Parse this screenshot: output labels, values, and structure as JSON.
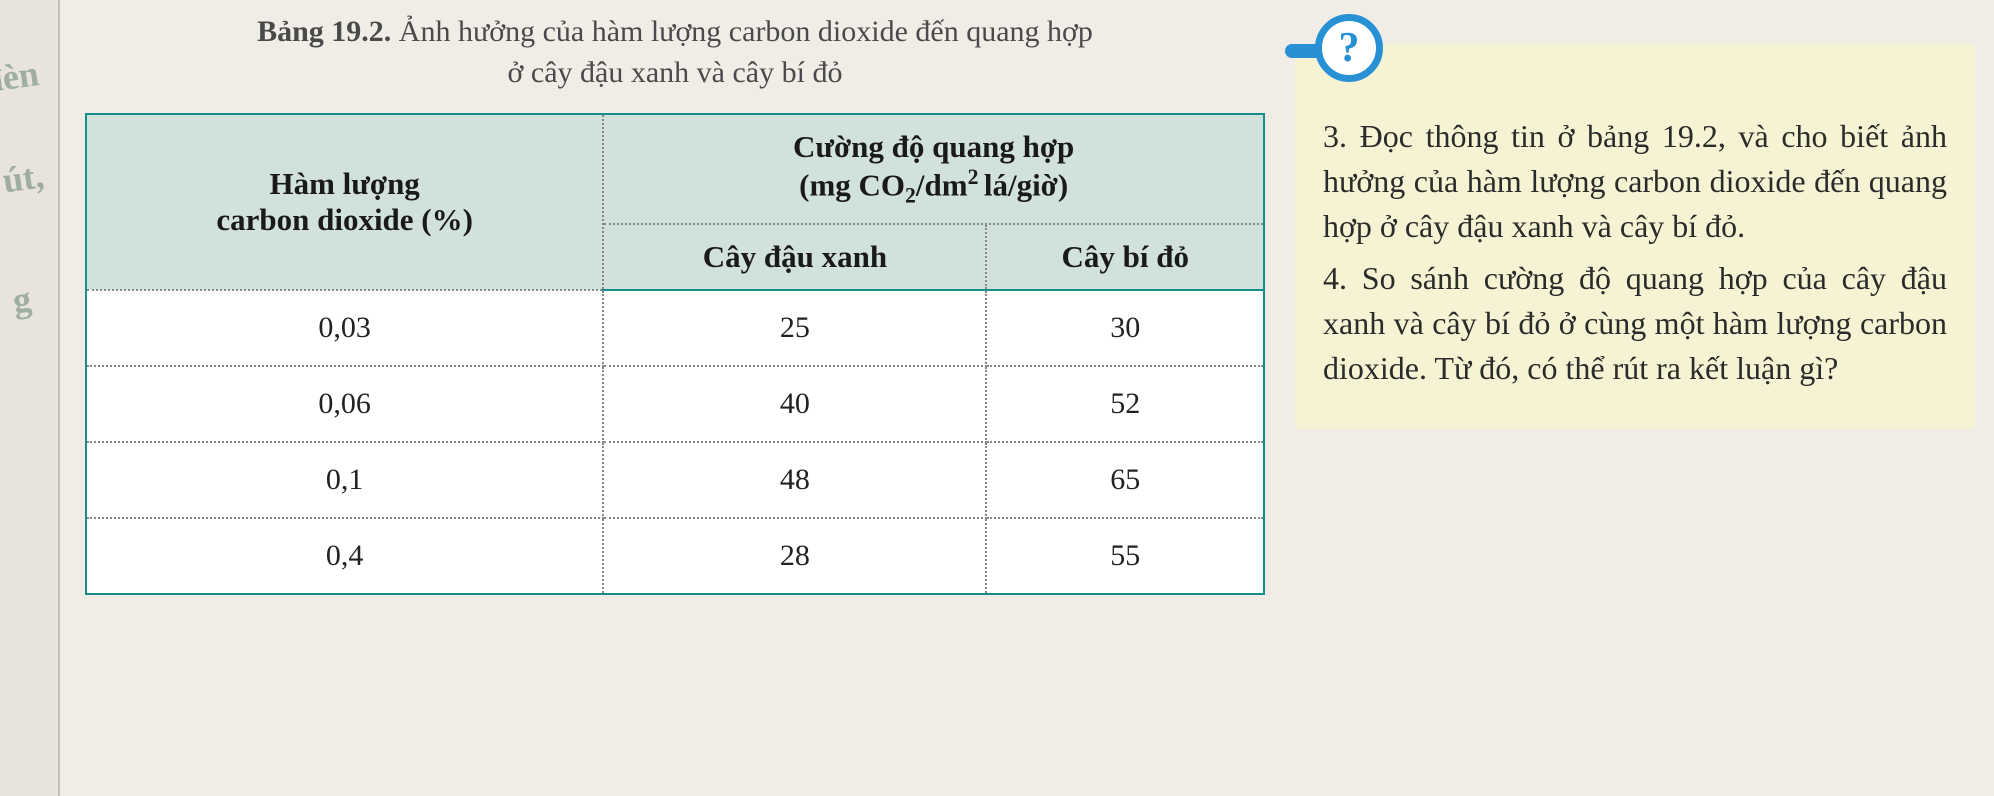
{
  "page_margin": {
    "label1": "đèn",
    "label2": "út,",
    "label3": "g"
  },
  "caption": {
    "bold": "Bảng 19.2.",
    "line1": " Ảnh hưởng của hàm lượng carbon dioxide đến quang hợp",
    "line2": "ở cây đậu xanh và cây bí đỏ"
  },
  "table": {
    "header_left_line1": "Hàm lượng",
    "header_left_line2": "carbon dioxide (%)",
    "header_right_line1": "Cường độ quang hợp",
    "header_right_line2_prefix": "(mg CO",
    "header_right_line2_sub": "2",
    "header_right_line2_mid": "/dm",
    "header_right_line2_sup": "2 ",
    "header_right_line2_suffix": "lá/giờ)",
    "sub_header_1": "Cây đậu xanh",
    "sub_header_2": "Cây bí đỏ",
    "rows": [
      {
        "co2": "0,03",
        "dau_xanh": "25",
        "bi_do": "30"
      },
      {
        "co2": "0,06",
        "dau_xanh": "40",
        "bi_do": "52"
      },
      {
        "co2": "0,1",
        "dau_xanh": "48",
        "bi_do": "65"
      },
      {
        "co2": "0,4",
        "dau_xanh": "28",
        "bi_do": "55"
      }
    ],
    "colors": {
      "border": "#168f8c",
      "header_bg": "#d1e1db",
      "dotted_border": "#888888",
      "row_bg": "#ffffff"
    }
  },
  "question_icon": {
    "glyph": "?",
    "ring_color": "#2891d6",
    "fill_color": "#ffffff"
  },
  "question_box": {
    "bg_color": "#f6f3d4",
    "items": [
      "3. Đọc thông tin ở bảng 19.2, và cho biết ảnh hưởng của hàm lượng carbon dioxide đến quang hợp ở cây đậu xanh và cây bí đỏ.",
      "4. So sánh cường độ quang hợp của cây đậu xanh và cây bí đỏ ở cùng một hàm lượng carbon dioxide. Từ đó, có thể rút ra kết luận gì?"
    ]
  }
}
